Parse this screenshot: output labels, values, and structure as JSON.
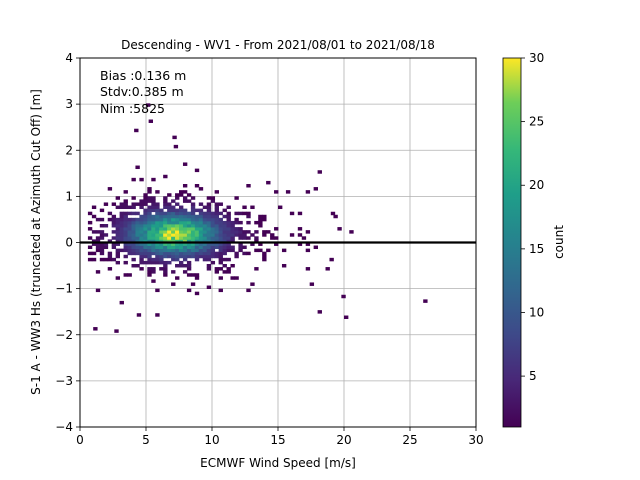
{
  "chart_data": {
    "type": "heatmap",
    "title": "Descending - WV1 - From 2021/08/01 to 2021/08/18",
    "xlabel": "ECMWF Wind Speed [m/s]",
    "ylabel": "S-1 A - WW3 Hs (truncated at Azimuth Cut Off) [m]",
    "xlim": [
      0,
      30
    ],
    "ylim": [
      -4,
      4
    ],
    "xticks": [
      "0",
      "5",
      "10",
      "15",
      "20",
      "25",
      "30"
    ],
    "yticks": [
      "−4",
      "−3",
      "−2",
      "−1",
      "0",
      "1",
      "2",
      "3",
      "4"
    ],
    "grid": true,
    "reference_line_y": 0,
    "annotations": [
      "Bias :0.136 m",
      "Stdv:0.385 m",
      "Nim :5825"
    ],
    "colorbar": {
      "label": "count",
      "min": 1,
      "max": 30,
      "ticks": [
        "5",
        "10",
        "15",
        "20",
        "25",
        "30"
      ],
      "colormap": "viridis"
    },
    "distribution": {
      "peak_x": 7,
      "peak_y": 0.15,
      "peak_count": 30,
      "x_range": [
        0.5,
        26
      ],
      "y_range": [
        -2,
        3
      ]
    },
    "outliers": [
      {
        "x": 5.0,
        "y": 2.95
      },
      {
        "x": 4.1,
        "y": 2.4
      },
      {
        "x": 5.2,
        "y": 2.6
      },
      {
        "x": 7.0,
        "y": 2.25
      },
      {
        "x": 7.1,
        "y": 2.05
      },
      {
        "x": 26.0,
        "y": -1.3
      },
      {
        "x": 2.6,
        "y": -1.95
      },
      {
        "x": 1.0,
        "y": -1.9
      },
      {
        "x": 4.3,
        "y": -1.6
      },
      {
        "x": 20.0,
        "y": -1.65
      },
      {
        "x": 18.0,
        "y": 1.5
      },
      {
        "x": 19.0,
        "y": 0.6
      }
    ]
  }
}
